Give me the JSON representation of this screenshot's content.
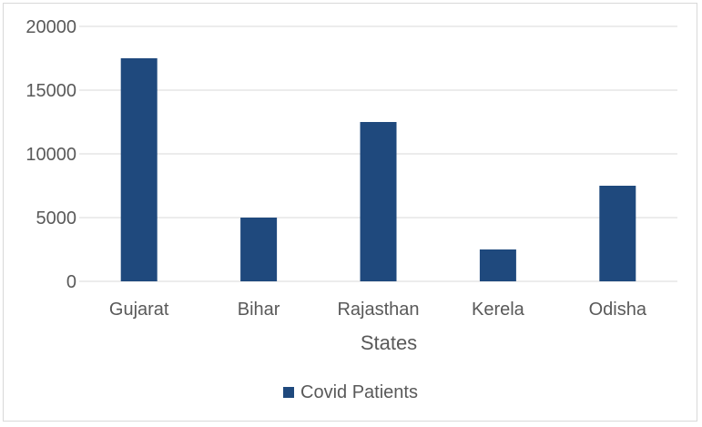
{
  "chart_data": {
    "type": "bar",
    "title": "",
    "xlabel": "States",
    "ylabel": "",
    "categories": [
      "Gujarat",
      "Bihar",
      "Rajasthan",
      "Kerela",
      "Odisha"
    ],
    "series": [
      {
        "name": "Covid Patients",
        "color": "#1f497d",
        "values": [
          17500,
          5000,
          12500,
          2500,
          7500
        ]
      }
    ],
    "ylim": [
      0,
      20000
    ],
    "yticks": [
      "0",
      "5000",
      "10000",
      "15000",
      "20000"
    ],
    "grid": true,
    "legend": "bottom"
  }
}
